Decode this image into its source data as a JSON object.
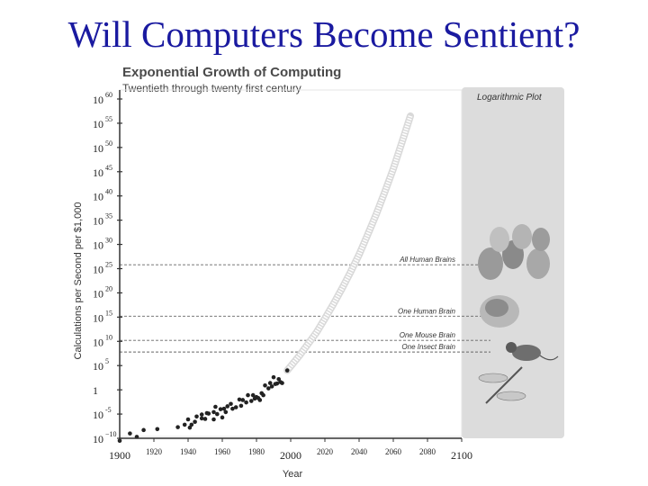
{
  "slide": {
    "title": "Will Computers Become Sentient?"
  },
  "chart_data": {
    "type": "scatter",
    "title": "Exponential Growth of Computing",
    "subtitle": "Twentieth through twenty first century",
    "xlabel": "Year",
    "ylabel": "Calculations per Second per $1,000",
    "xlim": [
      1900,
      2100
    ],
    "ylim": [
      -10,
      60
    ],
    "yscale": "log",
    "x_ticks": [
      1900,
      1920,
      1940,
      1960,
      1980,
      2000,
      2020,
      2040,
      2060,
      2080,
      2100
    ],
    "y_ticks": [
      {
        "exp": 60,
        "base": "10",
        "sup": "60"
      },
      {
        "exp": 55,
        "base": "10",
        "sup": "55"
      },
      {
        "exp": 50,
        "base": "10",
        "sup": "50"
      },
      {
        "exp": 45,
        "base": "10",
        "sup": "45"
      },
      {
        "exp": 40,
        "base": "10",
        "sup": "40"
      },
      {
        "exp": 35,
        "base": "10",
        "sup": "35"
      },
      {
        "exp": 30,
        "base": "10",
        "sup": "30"
      },
      {
        "exp": 25,
        "base": "10",
        "sup": "25"
      },
      {
        "exp": 20,
        "base": "10",
        "sup": "20"
      },
      {
        "exp": 15,
        "base": "10",
        "sup": "15"
      },
      {
        "exp": 10,
        "base": "10",
        "sup": "10"
      },
      {
        "exp": 5,
        "base": "10",
        "sup": "5"
      },
      {
        "exp": 0,
        "base": "1",
        "sup": ""
      },
      {
        "exp": -5,
        "base": "10",
        "sup": "-5"
      },
      {
        "exp": -10,
        "base": "10",
        "sup": "−10"
      }
    ],
    "points": [
      [
        1900,
        -10.5
      ],
      [
        1906,
        -9
      ],
      [
        1910,
        -9.7
      ],
      [
        1914,
        -8.3
      ],
      [
        1922,
        -8.1
      ],
      [
        1934,
        -7.7
      ],
      [
        1938,
        -7.2
      ],
      [
        1940,
        -6.1
      ],
      [
        1941,
        -7.8
      ],
      [
        1942,
        -7.2
      ],
      [
        1944,
        -6.6
      ],
      [
        1945,
        -5.5
      ],
      [
        1948,
        -5.9
      ],
      [
        1948,
        -5.1
      ],
      [
        1950,
        -6.0
      ],
      [
        1951,
        -4.8
      ],
      [
        1952,
        -4.9
      ],
      [
        1955,
        -4.6
      ],
      [
        1955,
        -6.1
      ],
      [
        1956,
        -3.5
      ],
      [
        1957,
        -5.0
      ],
      [
        1959,
        -4.0
      ],
      [
        1960,
        -5.7
      ],
      [
        1961,
        -3.9
      ],
      [
        1962,
        -4.6
      ],
      [
        1963,
        -3.4
      ],
      [
        1965,
        -2.9
      ],
      [
        1966,
        -3.9
      ],
      [
        1968,
        -3.6
      ],
      [
        1970,
        -2.0
      ],
      [
        1971,
        -3.3
      ],
      [
        1972,
        -2.1
      ],
      [
        1974,
        -2.6
      ],
      [
        1975,
        -1.1
      ],
      [
        1977,
        -2.3
      ],
      [
        1978,
        -1.1
      ],
      [
        1979,
        -1.8
      ],
      [
        1980,
        -1.5
      ],
      [
        1981,
        -1.7
      ],
      [
        1982,
        -2.1
      ],
      [
        1983,
        -0.7
      ],
      [
        1984,
        -1.1
      ],
      [
        1985,
        0.9
      ],
      [
        1987,
        0.3
      ],
      [
        1988,
        1.4
      ],
      [
        1989,
        0.7
      ],
      [
        1990,
        2.6
      ],
      [
        1991,
        1.2
      ],
      [
        1992,
        1.3
      ],
      [
        1993,
        2.2
      ],
      [
        1994,
        1.6
      ],
      [
        1995,
        1.4
      ],
      [
        1998,
        4.0
      ]
    ],
    "trend_curve": [
      [
        1998,
        4.0
      ],
      [
        2005,
        7.0
      ],
      [
        2010,
        9.4
      ],
      [
        2015,
        11.8
      ],
      [
        2020,
        14.7
      ],
      [
        2025,
        17.7
      ],
      [
        2030,
        20.9
      ],
      [
        2035,
        24.3
      ],
      [
        2040,
        27.9
      ],
      [
        2045,
        32.0
      ],
      [
        2050,
        36.2
      ],
      [
        2055,
        40.8
      ],
      [
        2060,
        45.6
      ],
      [
        2065,
        51.0
      ],
      [
        2070,
        56.5
      ]
    ],
    "thresholds": [
      {
        "label": "All Human Brains",
        "exp": 25.8
      },
      {
        "label": "One Human Brain",
        "exp": 15.2
      },
      {
        "label": "One Mouse Brain",
        "exp": 10.2
      },
      {
        "label": "One Insect Brain",
        "exp": 7.8
      }
    ],
    "panel_label": "Logarithmic Plot",
    "colors": {
      "points": "#222222",
      "trend": "#d9d9d9",
      "panel": "#dcdcdc",
      "thresholds": "#666666"
    }
  }
}
